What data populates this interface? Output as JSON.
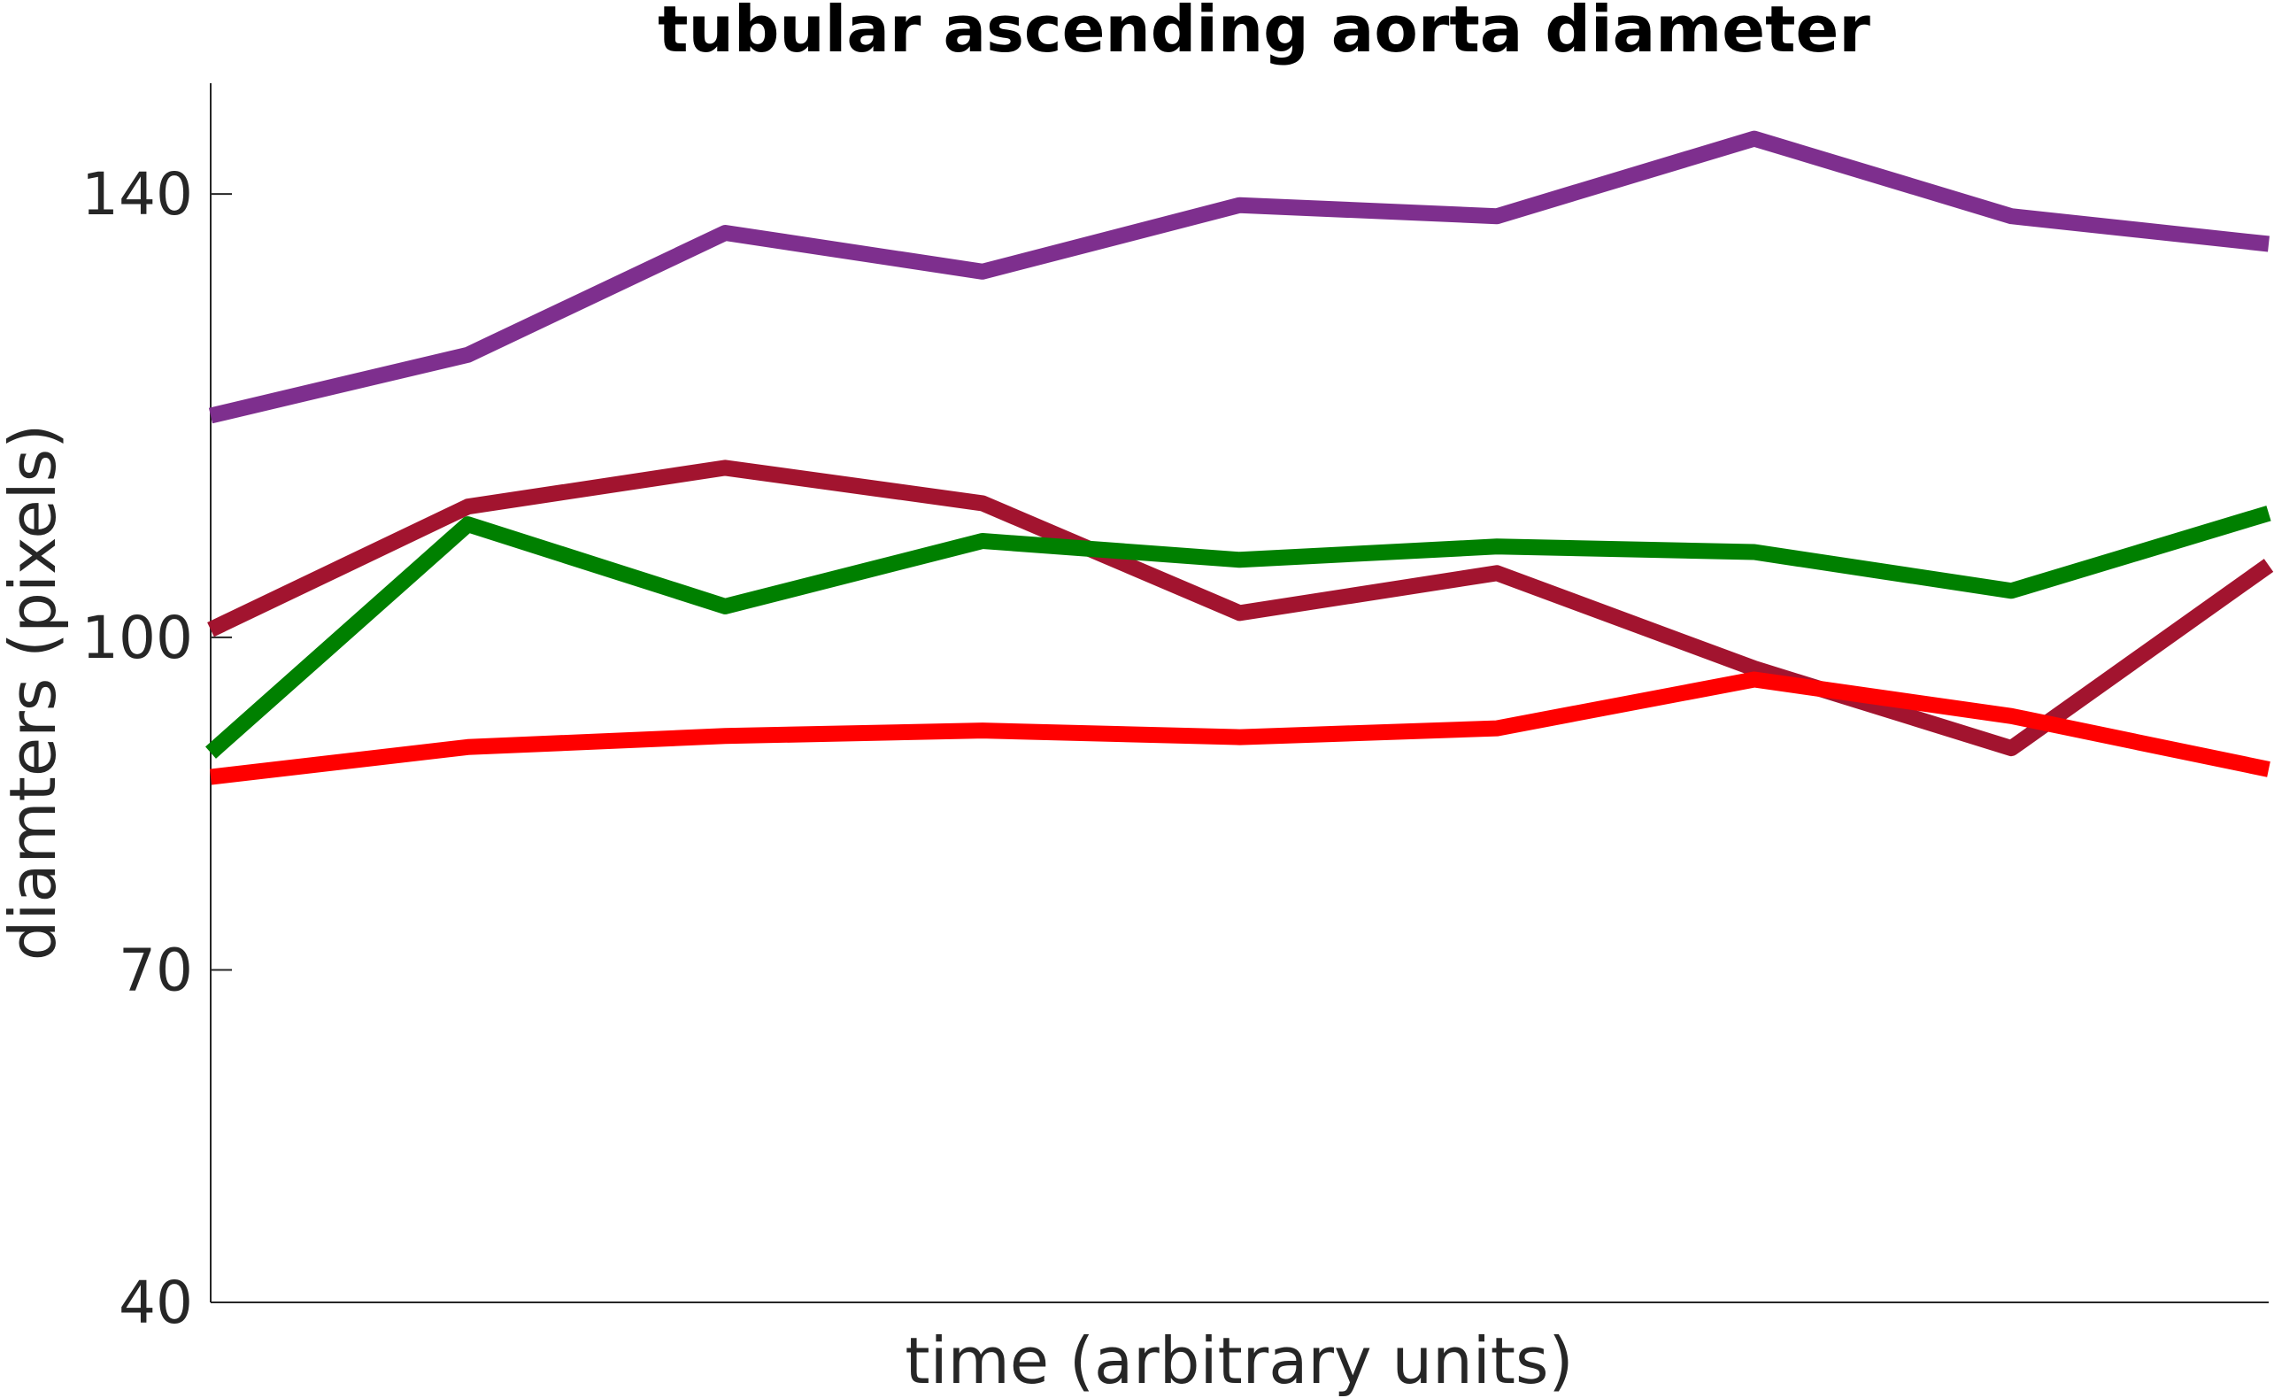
{
  "chart_data": {
    "type": "line",
    "title": "tubular ascending aorta diameter",
    "xlabel": "time (arbitrary units)",
    "ylabel": "diamters (pixels)",
    "x": [
      1,
      2,
      3,
      4,
      5,
      6,
      7,
      8,
      9
    ],
    "xlim": [
      1,
      9
    ],
    "ylim": [
      40,
      150
    ],
    "yticks": [
      40,
      70,
      100,
      140
    ],
    "grid": false,
    "legend": "none",
    "series": [
      {
        "color": "#7e2f8e",
        "values": [
          120,
          125.5,
          136.5,
          133,
          139,
          138,
          145,
          138,
          135.5
        ]
      },
      {
        "color": "#a2142f",
        "values": [
          100.7,
          111.8,
          115.3,
          112.1,
          102.2,
          105.8,
          97.2,
          90,
          106.5
        ]
      },
      {
        "color": "#008000",
        "values": [
          89.6,
          110.2,
          102.8,
          108.7,
          107,
          108.2,
          107.7,
          104.2,
          111.2
        ]
      },
      {
        "color": "#ff0000",
        "values": [
          87.4,
          90.1,
          91.1,
          91.6,
          91,
          91.8,
          96.2,
          92.9,
          88.1
        ]
      }
    ]
  }
}
